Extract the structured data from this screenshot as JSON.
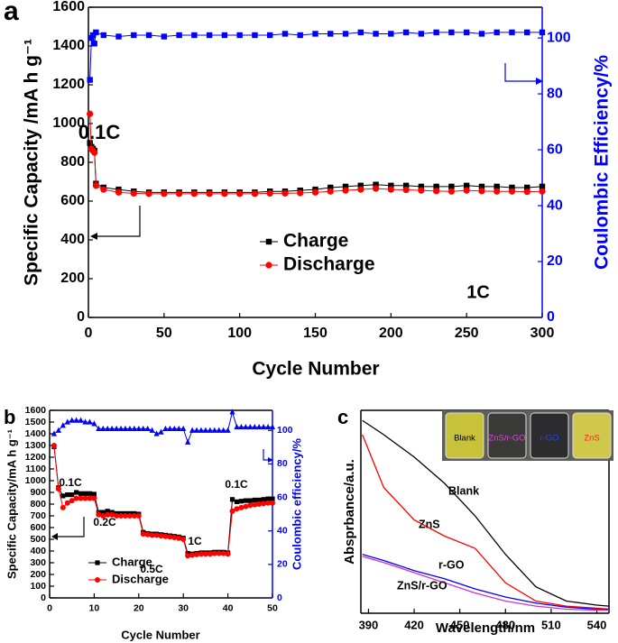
{
  "chart_data": [
    {
      "type": "scatter",
      "panel": "a",
      "xlabel": "Cycle Number",
      "ylabel": "Specific Capacity /mA h g⁻¹",
      "y2label": "Coulombic Efficiency/%",
      "annotations": [
        "0.1C",
        "1C"
      ],
      "x": [
        1,
        2,
        3,
        4,
        5,
        10,
        20,
        30,
        40,
        50,
        60,
        70,
        80,
        90,
        100,
        110,
        120,
        130,
        140,
        150,
        160,
        170,
        180,
        190,
        200,
        210,
        220,
        230,
        240,
        250,
        260,
        270,
        280,
        290,
        300
      ],
      "series": [
        {
          "name": "Charge",
          "color": "#000000",
          "marker": "square",
          "values": [
            900,
            880,
            870,
            860,
            690,
            670,
            660,
            650,
            645,
            645,
            645,
            645,
            645,
            645,
            645,
            645,
            650,
            650,
            655,
            660,
            670,
            675,
            680,
            685,
            680,
            680,
            675,
            675,
            675,
            680,
            675,
            675,
            670,
            670,
            675
          ]
        },
        {
          "name": "Discharge",
          "color": "#ff0000",
          "marker": "circle",
          "values": [
            1050,
            870,
            860,
            850,
            680,
            660,
            645,
            640,
            638,
            638,
            638,
            638,
            638,
            638,
            638,
            638,
            640,
            640,
            642,
            645,
            650,
            655,
            660,
            665,
            660,
            658,
            655,
            652,
            650,
            655,
            652,
            650,
            650,
            648,
            650
          ]
        },
        {
          "name": "Coulombic Efficiency",
          "color": "#0000ff",
          "marker": "square",
          "axis": "y2",
          "legend": false,
          "values": [
            85,
            100,
            101,
            98,
            102,
            101,
            100.5,
            101,
            101,
            100.5,
            101,
            101,
            101,
            101,
            101,
            101,
            101,
            101.5,
            101,
            101.5,
            101.5,
            101.5,
            102,
            101.5,
            101.5,
            102,
            101.5,
            102,
            102,
            102,
            101.5,
            102,
            102,
            102,
            102
          ]
        }
      ],
      "xlim": [
        0,
        300
      ],
      "xticks": [
        0,
        50,
        100,
        150,
        200,
        250,
        300
      ],
      "ylim": [
        0,
        1600
      ],
      "yticks": [
        0,
        200,
        400,
        600,
        800,
        1000,
        1200,
        1400,
        1600
      ],
      "y2lim": [
        0,
        111
      ],
      "y2ticks": [
        0,
        20,
        40,
        60,
        80,
        100
      ],
      "y2color": "#0000ff",
      "legend": "center"
    },
    {
      "type": "scatter",
      "panel": "b",
      "xlabel": "Cycle Number",
      "ylabel": "Specific Capacity/mA h g⁻¹",
      "y2label": "Coulombic efficiency/%",
      "annotations": [
        "0.1C",
        "0.2C",
        "0.5C",
        "1C",
        "0.1C"
      ],
      "x": [
        1,
        2,
        3,
        4,
        5,
        6,
        7,
        8,
        9,
        10,
        11,
        12,
        13,
        14,
        15,
        16,
        17,
        18,
        19,
        20,
        21,
        22,
        23,
        24,
        25,
        26,
        27,
        28,
        29,
        30,
        31,
        32,
        33,
        34,
        35,
        36,
        37,
        38,
        39,
        40,
        41,
        42,
        43,
        44,
        45,
        46,
        47,
        48,
        49,
        50
      ],
      "series": [
        {
          "name": "Charge",
          "color": "#000000",
          "marker": "square",
          "values": [
            1290,
            940,
            870,
            880,
            880,
            900,
            890,
            890,
            890,
            885,
            730,
            730,
            740,
            730,
            720,
            720,
            720,
            720,
            720,
            715,
            560,
            550,
            545,
            545,
            540,
            535,
            530,
            525,
            520,
            510,
            380,
            375,
            380,
            385,
            385,
            385,
            390,
            390,
            390,
            385,
            840,
            820,
            825,
            830,
            830,
            835,
            835,
            840,
            845,
            845
          ]
        },
        {
          "name": "Discharge",
          "color": "#ff0000",
          "marker": "circle",
          "values": [
            1300,
            930,
            770,
            810,
            830,
            850,
            850,
            850,
            850,
            850,
            710,
            700,
            710,
            710,
            700,
            700,
            700,
            700,
            700,
            700,
            545,
            540,
            535,
            535,
            530,
            525,
            520,
            515,
            510,
            500,
            360,
            365,
            370,
            375,
            375,
            375,
            380,
            380,
            380,
            375,
            740,
            760,
            770,
            780,
            790,
            795,
            800,
            805,
            810,
            810
          ]
        },
        {
          "name": "Coulombic efficiency",
          "color": "#0000ff",
          "marker": "triangle",
          "axis": "y2",
          "legend": false,
          "values": [
            98,
            100,
            103,
            105,
            106,
            106,
            106,
            105,
            105,
            104,
            101,
            101,
            101,
            101,
            101,
            101,
            101,
            101,
            101,
            101,
            101,
            101,
            100,
            98,
            99,
            101,
            101,
            101,
            101,
            101,
            93,
            100,
            100,
            100,
            100,
            100,
            100,
            100,
            100,
            100,
            111,
            102,
            102,
            102,
            102,
            102,
            102,
            102,
            102,
            102
          ]
        }
      ],
      "xlim": [
        0,
        50
      ],
      "xticks": [
        0,
        10,
        20,
        30,
        40,
        50
      ],
      "ylim": [
        0,
        1600
      ],
      "yticks": [
        0,
        100,
        200,
        300,
        400,
        500,
        600,
        700,
        800,
        900,
        1000,
        1100,
        1200,
        1300,
        1400,
        1500,
        1600
      ],
      "y2lim": [
        0,
        112
      ],
      "y2ticks": [
        0,
        20,
        40,
        60,
        80,
        100
      ],
      "y2color": "#0000ff",
      "legend": "lower center"
    },
    {
      "type": "line",
      "panel": "c",
      "xlabel": "Wavelength/nm",
      "ylabel": "Absprbance/a.u.",
      "inset_labels": [
        "Blank",
        "ZnS/r-GO",
        "r-GO",
        "ZnS"
      ],
      "x": [
        386,
        400,
        420,
        440,
        460,
        480,
        500,
        520,
        540,
        548
      ],
      "series": [
        {
          "name": "Blank",
          "color": "#000000",
          "values": [
            0.95,
            0.88,
            0.77,
            0.64,
            0.48,
            0.29,
            0.13,
            0.06,
            0.04,
            0.035
          ]
        },
        {
          "name": "ZnS",
          "color": "#ff0000",
          "values": [
            0.88,
            0.62,
            0.46,
            0.38,
            0.32,
            0.15,
            0.06,
            0.035,
            0.025,
            0.02
          ]
        },
        {
          "name": "r-GO",
          "color": "#0000ff",
          "values": [
            0.29,
            0.26,
            0.21,
            0.17,
            0.12,
            0.08,
            0.05,
            0.03,
            0.02,
            0.02
          ]
        },
        {
          "name": "ZnS/r-GO",
          "color": "#cc33cc",
          "values": [
            0.28,
            0.25,
            0.2,
            0.15,
            0.1,
            0.06,
            0.035,
            0.02,
            0.015,
            0.015
          ]
        }
      ],
      "xlim": [
        385,
        548
      ],
      "xticks": [
        390,
        420,
        450,
        480,
        510,
        540
      ],
      "ylim": [
        0,
        1
      ]
    }
  ]
}
